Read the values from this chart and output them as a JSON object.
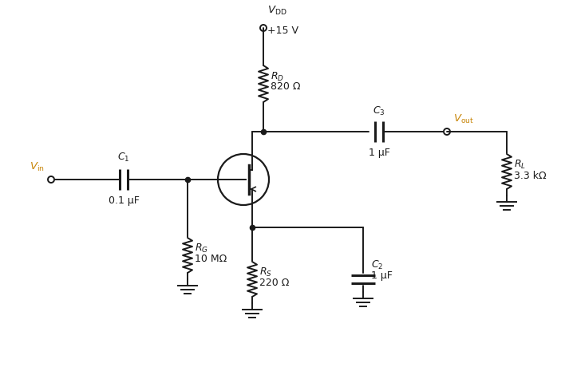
{
  "bg_color": "#ffffff",
  "component_color": "#1a1a1a",
  "label_color": "#1a1a1a",
  "orange_color": "#c8860a",
  "vdd_val": "+15 V",
  "rd_val": "820 Ω",
  "c1_val": "0.1 μF",
  "c2_val": "1 μF",
  "c3_val": "1 μF",
  "rg_val": "10 MΩ",
  "rs_val": "220 Ω",
  "rl_val": "3.3 kΩ"
}
